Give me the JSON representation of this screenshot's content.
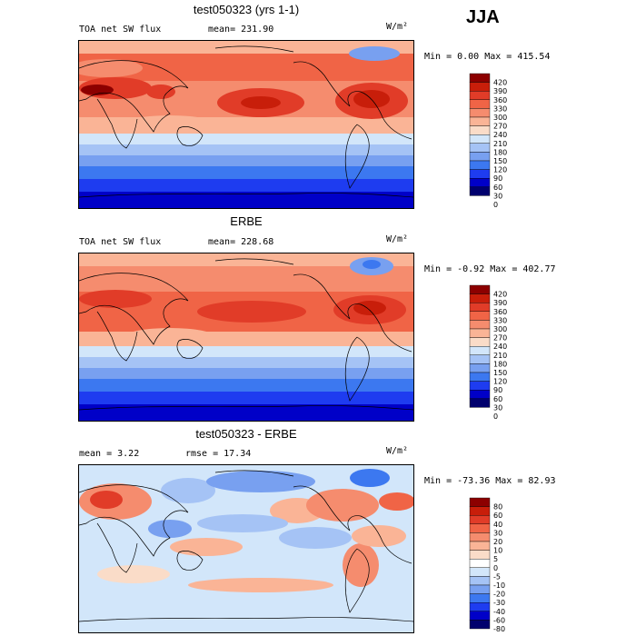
{
  "header": {
    "season": "JJA"
  },
  "colors": {
    "panel12": [
      "#00006e",
      "#0000c8",
      "#1e3cf0",
      "#3c78f0",
      "#78a0f0",
      "#a5c3f5",
      "#d2e6fa",
      "#fadcc8",
      "#fab496",
      "#f58c6e",
      "#f06446",
      "#e13c28",
      "#c81e0a",
      "#8c0000"
    ],
    "diff": [
      "#00006e",
      "#0000c8",
      "#1e3cf0",
      "#3c78f0",
      "#78a0f0",
      "#a5c3f5",
      "#d2e6fa",
      "#ffffff",
      "#fadcc8",
      "#fab496",
      "#f58c6e",
      "#f06446",
      "#e13c28",
      "#c81e0a",
      "#8c0000"
    ]
  },
  "panels": [
    {
      "title": "test050323 (yrs 1-1)",
      "field_label": "TOA net SW flux",
      "mean_text": "mean= 231.90",
      "units": "W/m²",
      "minmax_text": "Min =    0.00 Max = 415.54",
      "colorbar_ticks": [
        "420",
        "390",
        "360",
        "330",
        "300",
        "270",
        "240",
        "210",
        "180",
        "150",
        "120",
        "90",
        "60",
        "30",
        "0"
      ]
    },
    {
      "title": "ERBE",
      "field_label": "TOA net SW flux",
      "mean_text": "mean= 228.68",
      "units": "W/m²",
      "minmax_text": "Min =  -0.92 Max = 402.77",
      "colorbar_ticks": [
        "420",
        "390",
        "360",
        "330",
        "300",
        "270",
        "240",
        "210",
        "180",
        "150",
        "120",
        "90",
        "60",
        "30",
        "0"
      ]
    },
    {
      "title": "test050323 - ERBE",
      "field_label": "mean =    3.22",
      "mean_text": "rmse =  17.34",
      "units": "W/m²",
      "minmax_text": "Min = -73.36 Max =  82.93",
      "colorbar_ticks": [
        "80",
        "60",
        "40",
        "30",
        "20",
        "10",
        "5",
        "0",
        "-5",
        "-10",
        "-20",
        "-30",
        "-40",
        "-60",
        "-80"
      ]
    }
  ],
  "chart_data": [
    {
      "type": "heatmap",
      "title": "test050323 (yrs 1-1)",
      "variable": "TOA net SW flux",
      "units": "W/m2",
      "season": "JJA",
      "mean": 231.9,
      "min": 0.0,
      "max": 415.54,
      "contour_levels": [
        0,
        30,
        60,
        90,
        120,
        150,
        180,
        210,
        240,
        270,
        300,
        330,
        360,
        390,
        420
      ]
    },
    {
      "type": "heatmap",
      "title": "ERBE",
      "variable": "TOA net SW flux",
      "units": "W/m2",
      "season": "JJA",
      "mean": 228.68,
      "min": -0.92,
      "max": 402.77,
      "contour_levels": [
        0,
        30,
        60,
        90,
        120,
        150,
        180,
        210,
        240,
        270,
        300,
        330,
        360,
        390,
        420
      ]
    },
    {
      "type": "heatmap",
      "title": "test050323 - ERBE",
      "units": "W/m2",
      "season": "JJA",
      "mean": 3.22,
      "rmse": 17.34,
      "min": -73.36,
      "max": 82.93,
      "contour_levels": [
        -80,
        -60,
        -40,
        -30,
        -20,
        -10,
        -5,
        0,
        5,
        10,
        20,
        30,
        40,
        60,
        80
      ]
    }
  ]
}
